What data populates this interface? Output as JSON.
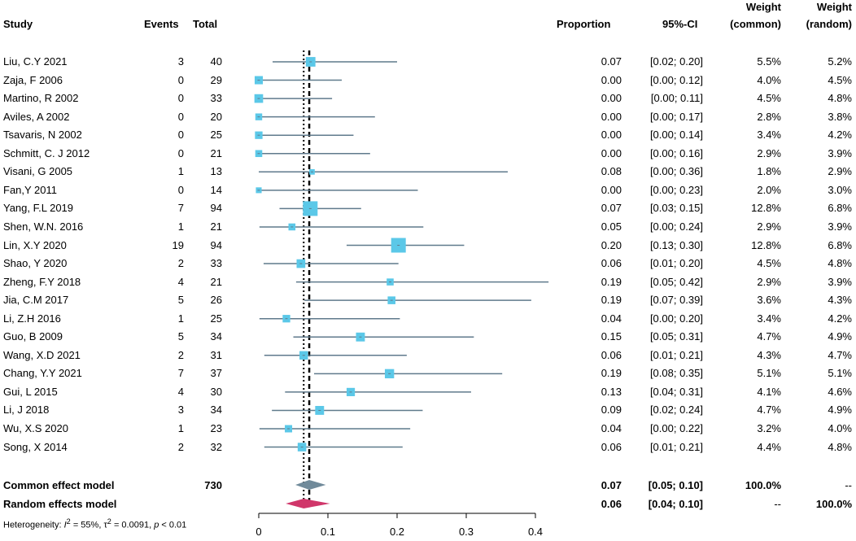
{
  "headers": {
    "study": "Study",
    "events": "Events",
    "total": "Total",
    "proportion": "Proportion",
    "ci": "95%-CI",
    "weight_common": [
      "Weight",
      "(common)"
    ],
    "weight_random": [
      "Weight",
      "(random)"
    ]
  },
  "studies": [
    {
      "name": "Liu, C.Y 2021",
      "events": "3",
      "total": "40",
      "prop": "0.07",
      "ci": "[0.02; 0.20]",
      "wc": "5.5%",
      "wr": "5.2%",
      "est": 0.075,
      "lo": 0.02,
      "hi": 0.2,
      "w": 5.5
    },
    {
      "name": "Zaja, F 2006",
      "events": "0",
      "total": "29",
      "prop": "0.00",
      "ci": "[0.00; 0.12]",
      "wc": "4.0%",
      "wr": "4.5%",
      "est": 0.0,
      "lo": 0.0,
      "hi": 0.12,
      "w": 4.0
    },
    {
      "name": "Martino, R 2002",
      "events": "0",
      "total": "33",
      "prop": "0.00",
      "ci": "[0.00; 0.11]",
      "wc": "4.5%",
      "wr": "4.8%",
      "est": 0.0,
      "lo": 0.0,
      "hi": 0.106,
      "w": 4.5
    },
    {
      "name": "Aviles, A 2002",
      "events": "0",
      "total": "20",
      "prop": "0.00",
      "ci": "[0.00; 0.17]",
      "wc": "2.8%",
      "wr": "3.8%",
      "est": 0.0,
      "lo": 0.0,
      "hi": 0.168,
      "w": 2.8
    },
    {
      "name": "Tsavaris, N 2002",
      "events": "0",
      "total": "25",
      "prop": "0.00",
      "ci": "[0.00; 0.14]",
      "wc": "3.4%",
      "wr": "4.2%",
      "est": 0.0,
      "lo": 0.0,
      "hi": 0.137,
      "w": 3.4
    },
    {
      "name": "Schmitt, C. J 2012",
      "events": "0",
      "total": "21",
      "prop": "0.00",
      "ci": "[0.00; 0.16]",
      "wc": "2.9%",
      "wr": "3.9%",
      "est": 0.0,
      "lo": 0.0,
      "hi": 0.161,
      "w": 2.9
    },
    {
      "name": "Visani, G 2005",
      "events": "1",
      "total": "13",
      "prop": "0.08",
      "ci": "[0.00; 0.36]",
      "wc": "1.8%",
      "wr": "2.9%",
      "est": 0.077,
      "lo": 0.0,
      "hi": 0.36,
      "w": 1.8
    },
    {
      "name": "Fan,Y 2011",
      "events": "0",
      "total": "14",
      "prop": "0.00",
      "ci": "[0.00; 0.23]",
      "wc": "2.0%",
      "wr": "3.0%",
      "est": 0.0,
      "lo": 0.0,
      "hi": 0.23,
      "w": 2.0
    },
    {
      "name": "Yang, F.L 2019",
      "events": "7",
      "total": "94",
      "prop": "0.07",
      "ci": "[0.03; 0.15]",
      "wc": "12.8%",
      "wr": "6.8%",
      "est": 0.0745,
      "lo": 0.03,
      "hi": 0.148,
      "w": 12.8
    },
    {
      "name": "Shen, W.N. 2016",
      "events": "1",
      "total": "21",
      "prop": "0.05",
      "ci": "[0.00; 0.24]",
      "wc": "2.9%",
      "wr": "3.9%",
      "est": 0.048,
      "lo": 0.001,
      "hi": 0.238,
      "w": 2.9
    },
    {
      "name": "Lin, X.Y 2020",
      "events": "19",
      "total": "94",
      "prop": "0.20",
      "ci": "[0.13; 0.30]",
      "wc": "12.8%",
      "wr": "6.8%",
      "est": 0.202,
      "lo": 0.127,
      "hi": 0.297,
      "w": 12.8
    },
    {
      "name": "Shao, Y 2020",
      "events": "2",
      "total": "33",
      "prop": "0.06",
      "ci": "[0.01; 0.20]",
      "wc": "4.5%",
      "wr": "4.8%",
      "est": 0.061,
      "lo": 0.007,
      "hi": 0.202,
      "w": 4.5
    },
    {
      "name": "Zheng, F.Y 2018",
      "events": "4",
      "total": "21",
      "prop": "0.19",
      "ci": "[0.05; 0.42]",
      "wc": "2.9%",
      "wr": "3.9%",
      "est": 0.19,
      "lo": 0.054,
      "hi": 0.419,
      "w": 2.9
    },
    {
      "name": "Jia, C.M 2017",
      "events": "5",
      "total": "26",
      "prop": "0.19",
      "ci": "[0.07; 0.39]",
      "wc": "3.6%",
      "wr": "4.3%",
      "est": 0.192,
      "lo": 0.066,
      "hi": 0.394,
      "w": 3.6
    },
    {
      "name": "Li, Z.H 2016",
      "events": "1",
      "total": "25",
      "prop": "0.04",
      "ci": "[0.00; 0.20]",
      "wc": "3.4%",
      "wr": "4.2%",
      "est": 0.04,
      "lo": 0.001,
      "hi": 0.204,
      "w": 3.4
    },
    {
      "name": "Guo, B 2009",
      "events": "5",
      "total": "34",
      "prop": "0.15",
      "ci": "[0.05; 0.31]",
      "wc": "4.7%",
      "wr": "4.9%",
      "est": 0.147,
      "lo": 0.05,
      "hi": 0.311,
      "w": 4.7
    },
    {
      "name": "Wang, X.D 2021",
      "events": "2",
      "total": "31",
      "prop": "0.06",
      "ci": "[0.01; 0.21]",
      "wc": "4.3%",
      "wr": "4.7%",
      "est": 0.065,
      "lo": 0.008,
      "hi": 0.214,
      "w": 4.3
    },
    {
      "name": "Chang, Y.Y 2021",
      "events": "7",
      "total": "37",
      "prop": "0.19",
      "ci": "[0.08; 0.35]",
      "wc": "5.1%",
      "wr": "5.1%",
      "est": 0.189,
      "lo": 0.08,
      "hi": 0.352,
      "w": 5.1
    },
    {
      "name": "Gui, L 2015",
      "events": "4",
      "total": "30",
      "prop": "0.13",
      "ci": "[0.04; 0.31]",
      "wc": "4.1%",
      "wr": "4.6%",
      "est": 0.133,
      "lo": 0.038,
      "hi": 0.307,
      "w": 4.1
    },
    {
      "name": "Li, J 2018",
      "events": "3",
      "total": "34",
      "prop": "0.09",
      "ci": "[0.02; 0.24]",
      "wc": "4.7%",
      "wr": "4.9%",
      "est": 0.088,
      "lo": 0.019,
      "hi": 0.237,
      "w": 4.7
    },
    {
      "name": "Wu, X.S 2020",
      "events": "1",
      "total": "23",
      "prop": "0.04",
      "ci": "[0.00; 0.22]",
      "wc": "3.2%",
      "wr": "4.0%",
      "est": 0.043,
      "lo": 0.001,
      "hi": 0.219,
      "w": 3.2
    },
    {
      "name": "Song, X 2014",
      "events": "2",
      "total": "32",
      "prop": "0.06",
      "ci": "[0.01; 0.21]",
      "wc": "4.4%",
      "wr": "4.8%",
      "est": 0.0625,
      "lo": 0.008,
      "hi": 0.208,
      "w": 4.4
    }
  ],
  "summary": {
    "common": {
      "label": "Common effect model",
      "total": "730",
      "prop": "0.07",
      "ci": "[0.05; 0.10]",
      "wc": "100.0%",
      "wr": "--",
      "est": 0.073,
      "lo": 0.053,
      "hi": 0.097
    },
    "random": {
      "label": "Random effects model",
      "prop": "0.06",
      "ci": "[0.04; 0.10]",
      "wc": "--",
      "wr": "100.0%",
      "est": 0.065,
      "lo": 0.039,
      "hi": 0.103
    }
  },
  "heterogeneity": {
    "prefix": "Heterogeneity: ",
    "i2": "I",
    "i2_sup": "2",
    "i2_val": " = 55%, ",
    "tau": "τ",
    "tau_sup": "2",
    "tau_val": " = 0.0091, ",
    "p": "p",
    "p_val": " < 0.01"
  },
  "colors": {
    "square": "#5bc8e8",
    "ci_line": "#5f7a8c",
    "common_diamond": "#708a9a",
    "random_diamond": "#d0366a",
    "axis": "#000000"
  },
  "chart_data": {
    "type": "forest",
    "xlim": [
      0,
      0.4
    ],
    "xticks": [
      0,
      0.1,
      0.2,
      0.3,
      0.4
    ],
    "xtick_labels": [
      "0",
      "0.1",
      "0.2",
      "0.3",
      "0.4"
    ],
    "reference_lines": [
      {
        "style": "dashed",
        "value": 0.073
      },
      {
        "style": "dotted",
        "value": 0.065
      }
    ]
  }
}
